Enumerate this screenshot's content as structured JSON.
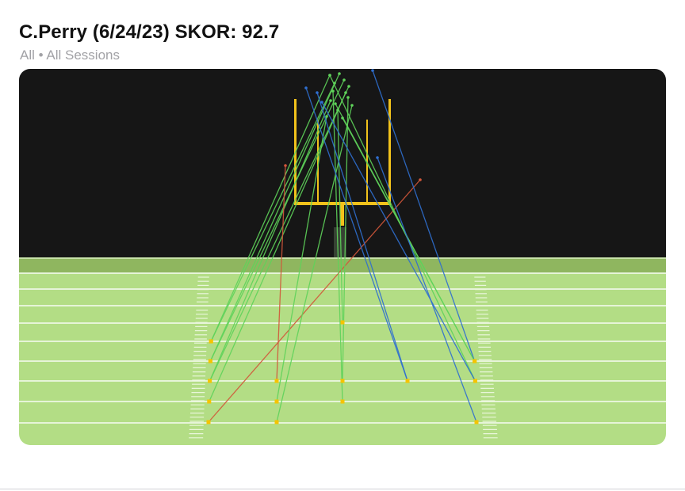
{
  "header": {
    "title": "C.Perry (6/24/23) SKOR: 92.7",
    "filter_label": "All",
    "separator": "•",
    "sessions_label": "All Sessions"
  },
  "colors": {
    "sky": "#161616",
    "grass": "#b3dd85",
    "grass_horizon": "#8fb65f",
    "yard_line": "#ffffff",
    "goal_post": "#f1c21b",
    "kick_made": "#5fd35a",
    "kick_made_high": "#49b457",
    "kick_blue": "#2f6fd0",
    "kick_missed": "#d2573a",
    "kick_spot": "#f5c400"
  },
  "kicks": [
    {
      "from": "left-hash",
      "yard": 1,
      "result": "made"
    },
    {
      "from": "left-hash",
      "yard": 1,
      "result": "made"
    },
    {
      "from": "left-hash",
      "yard": 2,
      "result": "made"
    },
    {
      "from": "left-hash",
      "yard": 2,
      "result": "made"
    },
    {
      "from": "left-hash",
      "yard": 3,
      "result": "made"
    },
    {
      "from": "left-hash",
      "yard": 3,
      "result": "made"
    },
    {
      "from": "left-hash",
      "yard": 4,
      "result": "made"
    },
    {
      "from": "left-hash",
      "yard": 5,
      "result": "missed"
    },
    {
      "from": "left-mid",
      "yard": 3,
      "result": "missed"
    },
    {
      "from": "left-mid",
      "yard": 4,
      "result": "made"
    },
    {
      "from": "left-mid",
      "yard": 5,
      "result": "made"
    },
    {
      "from": "middle",
      "yard": 0,
      "result": "made"
    },
    {
      "from": "middle",
      "yard": 3,
      "result": "made"
    },
    {
      "from": "middle",
      "yard": 4,
      "result": "made"
    },
    {
      "from": "right-mid",
      "yard": 3,
      "result": "blue"
    },
    {
      "from": "right-mid",
      "yard": 3,
      "result": "blue"
    },
    {
      "from": "right-hash",
      "yard": 2,
      "result": "made"
    },
    {
      "from": "right-hash",
      "yard": 2,
      "result": "blue"
    },
    {
      "from": "right-hash",
      "yard": 2,
      "result": "made"
    },
    {
      "from": "right-hash",
      "yard": 3,
      "result": "made"
    },
    {
      "from": "right-hash",
      "yard": 3,
      "result": "blue"
    },
    {
      "from": "right-hash",
      "yard": 5,
      "result": "blue"
    }
  ]
}
